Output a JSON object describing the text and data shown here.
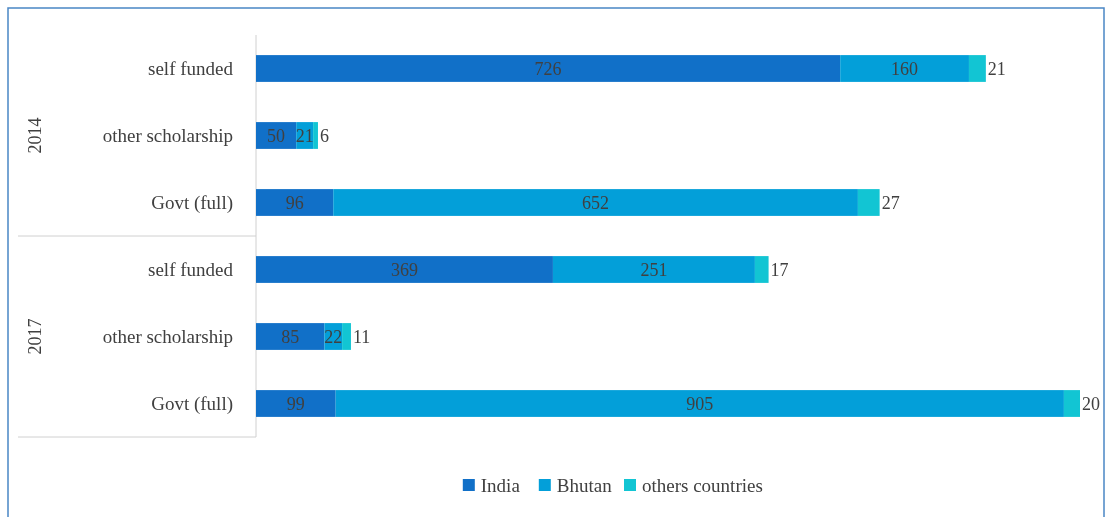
{
  "chart_data": {
    "type": "bar",
    "orientation": "horizontal",
    "stacked": true,
    "data_labels": true,
    "legend": "bottom",
    "categories": [
      "self funded",
      "other scholarship",
      "Govt (full)",
      "self funded",
      "other scholarship",
      "Govt (full)"
    ],
    "annotations": [
      "2014",
      "2017"
    ],
    "series": [
      {
        "name": "India",
        "color": "#1170c8",
        "values": [
          726,
          50,
          96,
          369,
          85,
          99
        ]
      },
      {
        "name": "Bhutan",
        "color": "#039fd9",
        "values": [
          160,
          21,
          652,
          251,
          22,
          905
        ]
      },
      {
        "name": "others countries",
        "color": "#12c5d3",
        "values": [
          21,
          6,
          27,
          17,
          11,
          20
        ]
      }
    ]
  }
}
